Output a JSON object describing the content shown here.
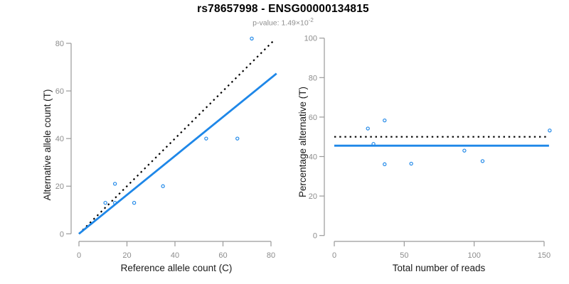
{
  "header": {
    "title": "rs78657998 - ENSG00000134815",
    "subtitle_prefix": "p-value: 1.49×10",
    "subtitle_exponent": "-2",
    "subtitle_full": "p-value: 1.49×10^-2"
  },
  "colors": {
    "accent_blue": "#1E87E8",
    "dotted_black": "#000000",
    "axis_line": "#9a9a9a",
    "tick_label": "#8c8c8c",
    "axis_title": "#1a1a1a",
    "title_text": "#000000",
    "subtitle_text": "#8f8f8f"
  },
  "chart_data": [
    {
      "type": "scatter",
      "panel": "left",
      "xlabel": "Reference allele count (C)",
      "ylabel": "Alternative allele count (T)",
      "xlim": [
        0,
        82
      ],
      "ylim": [
        0,
        83
      ],
      "xticks": [
        0,
        20,
        40,
        60,
        80
      ],
      "yticks": [
        0,
        20,
        40,
        60,
        80
      ],
      "grid": false,
      "legend": "none",
      "points": [
        [
          11,
          13
        ],
        [
          15,
          13
        ],
        [
          15,
          21
        ],
        [
          23,
          13
        ],
        [
          35,
          20
        ],
        [
          53,
          40
        ],
        [
          66,
          40
        ],
        [
          72,
          82
        ]
      ],
      "lines": [
        {
          "name": "identity-line",
          "style": "dotted",
          "color_key": "dotted_black",
          "x": [
            0,
            81.5
          ],
          "y": [
            0,
            81.5
          ]
        },
        {
          "name": "fit-line",
          "style": "solid",
          "color_key": "accent_blue",
          "x": [
            0,
            82.3
          ],
          "y": [
            0,
            67.3
          ]
        }
      ]
    },
    {
      "type": "scatter",
      "panel": "right",
      "xlabel": "Total number of reads",
      "ylabel": "Percentage alternative (T)",
      "xlim": [
        0,
        155
      ],
      "ylim": [
        0,
        100
      ],
      "xticks": [
        0,
        50,
        100,
        150
      ],
      "yticks": [
        0,
        20,
        40,
        60,
        80,
        100
      ],
      "grid": false,
      "legend": "none",
      "points": [
        [
          24,
          54.2
        ],
        [
          28,
          46.4
        ],
        [
          36,
          58.3
        ],
        [
          36,
          36.1
        ],
        [
          55,
          36.4
        ],
        [
          93,
          43.0
        ],
        [
          106,
          37.7
        ],
        [
          154,
          53.2
        ]
      ],
      "lines": [
        {
          "name": "expected-50pct-line",
          "style": "dotted",
          "color_key": "dotted_black",
          "x": [
            0,
            153.5
          ],
          "y": [
            50,
            50
          ]
        },
        {
          "name": "mean-pct-line",
          "style": "solid",
          "color_key": "accent_blue",
          "x": [
            0,
            153.5
          ],
          "y": [
            45.5,
            45.5
          ]
        }
      ]
    }
  ]
}
